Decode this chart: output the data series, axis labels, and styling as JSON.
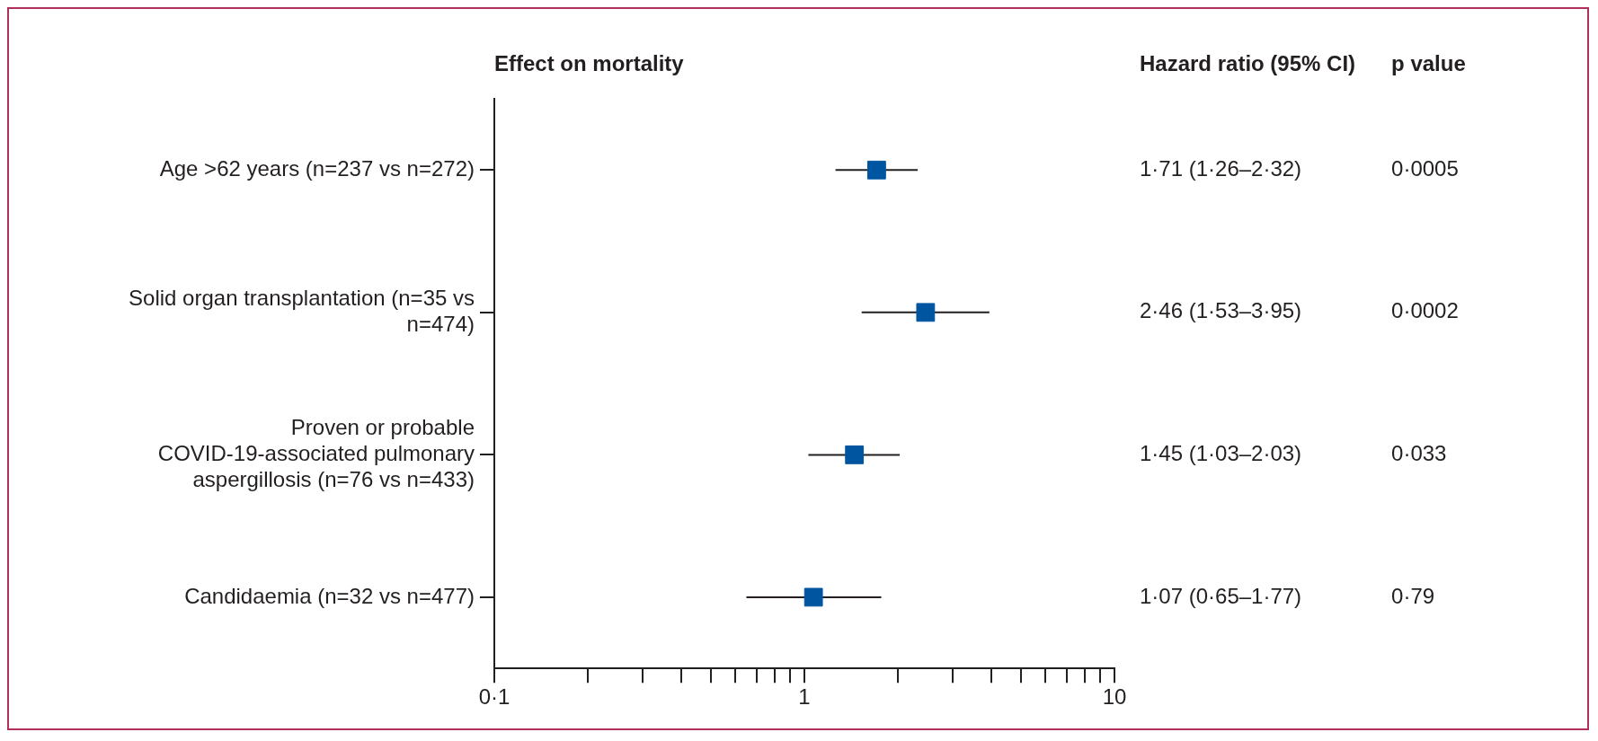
{
  "chart_data": {
    "type": "scatter",
    "orientation": "horizontal",
    "title": "Effect on mortality",
    "categories": [
      "Age >62 years (n=237 vs n=272)",
      "Solid organ transplantation (n=35 vs n=474)",
      "Proven or probable COVID-19-associated pulmonary aspergillosis (n=76 vs n=433)",
      "Candidaemia (n=32 vs n=477)"
    ],
    "values": [
      1.71,
      2.46,
      1.45,
      1.07
    ],
    "errors": [
      [
        1.26,
        2.32
      ],
      [
        1.53,
        3.95
      ],
      [
        1.03,
        2.03
      ],
      [
        0.65,
        1.77
      ]
    ],
    "value_labels": [
      "1·71 (1·26–2·32)",
      "2·46 (1·53–3·95)",
      "1·45 (1·03–2·03)",
      "1·07 (0·65–1·77)"
    ],
    "color": "#0055a0",
    "marker": "square",
    "log": "x",
    "grid": false,
    "legend": false,
    "xlim": [
      0.1,
      10
    ],
    "xticks": [
      {
        "value": 0.1,
        "label": "0·1"
      },
      {
        "value": 0.2,
        "label": null
      },
      {
        "value": 0.3,
        "label": null
      },
      {
        "value": 0.4,
        "label": null
      },
      {
        "value": 0.5,
        "label": null
      },
      {
        "value": 0.6,
        "label": null
      },
      {
        "value": 0.7,
        "label": null
      },
      {
        "value": 0.8,
        "label": null
      },
      {
        "value": 0.9,
        "label": null
      },
      1,
      {
        "value": 2,
        "label": null
      },
      {
        "value": 3,
        "label": null
      },
      {
        "value": 4,
        "label": null
      },
      {
        "value": 5,
        "label": null
      },
      {
        "value": 6,
        "label": null
      },
      {
        "value": 7,
        "label": null
      },
      {
        "value": 8,
        "label": null
      },
      {
        "value": 9,
        "label": null
      },
      10
    ],
    "annotations": [
      "Hazard ratio (95% CI)",
      "p value",
      "0·0005",
      "0·0002",
      "0·033",
      "0·79"
    ]
  }
}
